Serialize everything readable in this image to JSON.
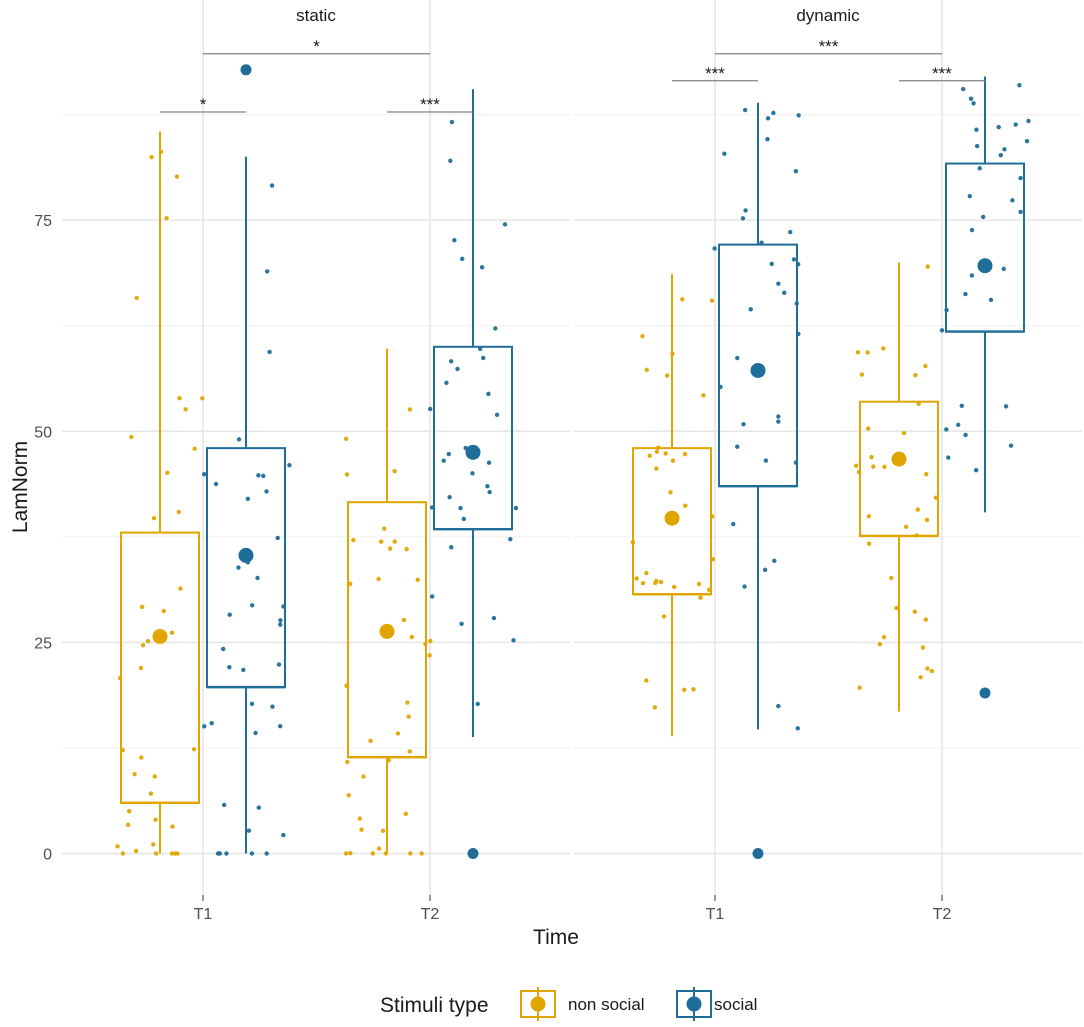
{
  "chart_data": {
    "type": "boxplot",
    "xlabel": "Time",
    "ylabel": "LamNorm",
    "ylim": [
      -3,
      97
    ],
    "yticks": [
      0,
      25,
      50,
      75
    ],
    "grid": true,
    "legend": {
      "title": "Stimuli type",
      "position": "bottom",
      "entries": [
        "non social",
        "social"
      ]
    },
    "colors": {
      "non social": "#E1A500",
      "social": "#1F6E99",
      "axis": "#4d4d4d",
      "grid": "#e6e6e6",
      "bracket": "#808080"
    },
    "panels": [
      {
        "name": "static",
        "categories": [
          "T1",
          "T2"
        ],
        "boxes": [
          {
            "time": "T1",
            "group": "non social",
            "lower_whisker": 0,
            "q1": 6,
            "median": 6,
            "q3": 38,
            "upper_whisker": 85.5,
            "mean": 25.7,
            "outliers": []
          },
          {
            "time": "T1",
            "group": "social",
            "lower_whisker": 0,
            "q1": 19.7,
            "median": 19.7,
            "q3": 48,
            "upper_whisker": 82.5,
            "mean": 35.3,
            "outliers": [
              92.8
            ]
          },
          {
            "time": "T2",
            "group": "non social",
            "lower_whisker": 0,
            "q1": 11.4,
            "median": 11.4,
            "q3": 41.6,
            "upper_whisker": 59.8,
            "mean": 26.3,
            "outliers": []
          },
          {
            "time": "T2",
            "group": "social",
            "lower_whisker": 13.8,
            "q1": 38.4,
            "median": 38.4,
            "q3": 60,
            "upper_whisker": 90.5,
            "mean": 47.5,
            "outliers": [
              0
            ]
          }
        ],
        "significance": [
          {
            "label": "*",
            "from": "T1 non social",
            "to": "T1 social",
            "y": 87.8
          },
          {
            "label": "***",
            "from": "T2 non social",
            "to": "T2 social",
            "y": 87.8
          },
          {
            "label": "*",
            "from": "T1",
            "to": "T2",
            "y": 94.7
          }
        ]
      },
      {
        "name": "dynamic",
        "categories": [
          "T1",
          "T2"
        ],
        "boxes": [
          {
            "time": "T1",
            "group": "non social",
            "lower_whisker": 13.9,
            "q1": 30.7,
            "median": 30.7,
            "q3": 48,
            "upper_whisker": 68.6,
            "mean": 39.7,
            "outliers": []
          },
          {
            "time": "T1",
            "group": "social",
            "lower_whisker": 14.7,
            "q1": 43.5,
            "median": 43.5,
            "q3": 72.1,
            "upper_whisker": 88.9,
            "mean": 57.2,
            "outliers": [
              0
            ]
          },
          {
            "time": "T2",
            "group": "non social",
            "lower_whisker": 16.8,
            "q1": 37.6,
            "median": 37.6,
            "q3": 53.5,
            "upper_whisker": 70,
            "mean": 46.7,
            "outliers": []
          },
          {
            "time": "T2",
            "group": "social",
            "lower_whisker": 40.4,
            "q1": 61.8,
            "median": 61.8,
            "q3": 81.7,
            "upper_whisker": 92,
            "mean": 69.6,
            "outliers": [
              19
            ]
          }
        ],
        "significance": [
          {
            "label": "***",
            "from": "T1 non social",
            "to": "T1 social",
            "y": 91.5
          },
          {
            "label": "***",
            "from": "T2 non social",
            "to": "T2 social",
            "y": 91.5
          },
          {
            "label": "***",
            "from": "T1",
            "to": "T2",
            "y": 94.7
          }
        ]
      }
    ]
  }
}
